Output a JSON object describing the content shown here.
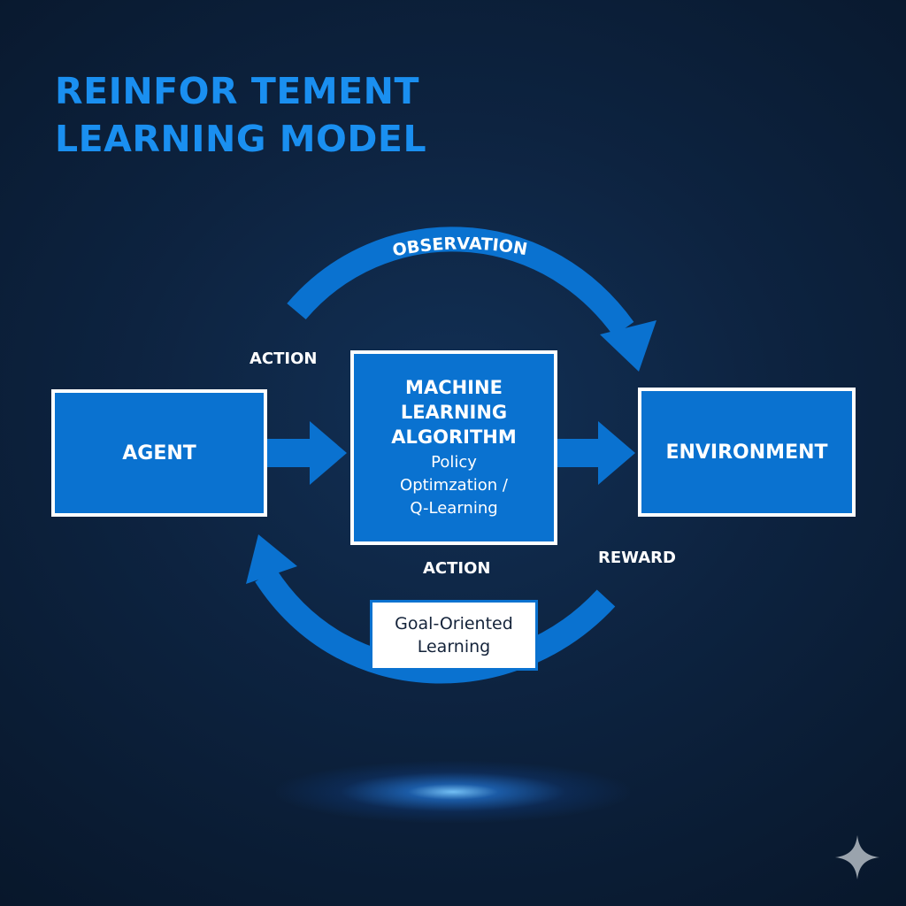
{
  "title": {
    "line1": "REINFOR TEMENT",
    "line2": "LEARNING MODEL"
  },
  "nodes": {
    "agent": "AGENT",
    "environment": "ENVIRONMENT",
    "algorithm": {
      "title": "MACHINE\nLEARNING\nALGORITHM",
      "subtitle": "Policy\nOptimzation /\nQ-Learning"
    },
    "goal": "Goal-Oriented\nLearning"
  },
  "edges": {
    "observation": "OBSERVATION",
    "action_top": "ACTION",
    "action_bottom": "ACTION",
    "reward": "REWARD"
  },
  "icons": {
    "sparkle": "sparkle-icon"
  },
  "colors": {
    "accent": "#0a72d0",
    "title": "#1a8ff0",
    "background": "#0d2340"
  }
}
